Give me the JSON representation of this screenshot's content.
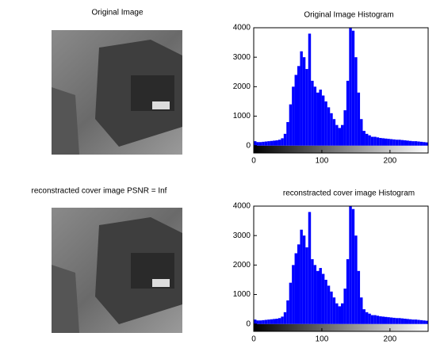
{
  "images": [
    {
      "title": "Original Image"
    },
    {
      "title": "reconstracted cover image PSNR = Inf"
    }
  ],
  "chart_data": [
    {
      "type": "histogram",
      "title": "Original Image Histogram",
      "color": "#0000ff",
      "bins": [
        0,
        4,
        8,
        12,
        16,
        20,
        24,
        28,
        32,
        36,
        40,
        44,
        48,
        52,
        56,
        60,
        64,
        68,
        72,
        76,
        80,
        84,
        88,
        92,
        96,
        100,
        104,
        108,
        112,
        116,
        120,
        124,
        128,
        132,
        136,
        140,
        144,
        148,
        152,
        156,
        160,
        164,
        168,
        172,
        176,
        180,
        184,
        188,
        192,
        196,
        200,
        204,
        208,
        212,
        216,
        220,
        224,
        228,
        232,
        236,
        240,
        244,
        248,
        252,
        256
      ],
      "values": [
        150,
        120,
        120,
        130,
        140,
        150,
        160,
        170,
        180,
        200,
        250,
        400,
        800,
        1400,
        2000,
        2400,
        2700,
        3200,
        3000,
        2600,
        3800,
        2200,
        2000,
        1800,
        1900,
        1700,
        1500,
        1300,
        1100,
        900,
        700,
        600,
        700,
        1200,
        2200,
        4000,
        3900,
        3000,
        1800,
        900,
        500,
        400,
        350,
        300,
        300,
        280,
        260,
        250,
        240,
        230,
        220,
        210,
        200,
        200,
        190,
        180,
        170,
        160,
        150,
        150,
        140,
        130,
        120,
        110
      ],
      "xlim": [
        0,
        256
      ],
      "ylim": [
        -250,
        4000
      ],
      "xticks": [
        0,
        100,
        200
      ],
      "yticks": [
        0,
        1000,
        2000,
        3000,
        4000
      ]
    },
    {
      "type": "histogram",
      "title": "reconstracted cover image Histogram",
      "color": "#0000ff",
      "bins": [
        0,
        4,
        8,
        12,
        16,
        20,
        24,
        28,
        32,
        36,
        40,
        44,
        48,
        52,
        56,
        60,
        64,
        68,
        72,
        76,
        80,
        84,
        88,
        92,
        96,
        100,
        104,
        108,
        112,
        116,
        120,
        124,
        128,
        132,
        136,
        140,
        144,
        148,
        152,
        156,
        160,
        164,
        168,
        172,
        176,
        180,
        184,
        188,
        192,
        196,
        200,
        204,
        208,
        212,
        216,
        220,
        224,
        228,
        232,
        236,
        240,
        244,
        248,
        252,
        256
      ],
      "values": [
        150,
        120,
        120,
        130,
        140,
        150,
        160,
        170,
        180,
        200,
        250,
        400,
        800,
        1400,
        2000,
        2400,
        2700,
        3200,
        3000,
        2600,
        3800,
        2200,
        2000,
        1800,
        1900,
        1700,
        1500,
        1300,
        1100,
        900,
        700,
        600,
        700,
        1200,
        2200,
        4000,
        3900,
        3000,
        1800,
        900,
        500,
        400,
        350,
        300,
        300,
        280,
        260,
        250,
        240,
        230,
        220,
        210,
        200,
        200,
        190,
        180,
        170,
        160,
        150,
        150,
        140,
        130,
        120,
        110
      ],
      "xlim": [
        0,
        256
      ],
      "ylim": [
        -250,
        4000
      ],
      "xticks": [
        0,
        100,
        200
      ],
      "yticks": [
        0,
        1000,
        2000,
        3000,
        4000
      ]
    }
  ]
}
